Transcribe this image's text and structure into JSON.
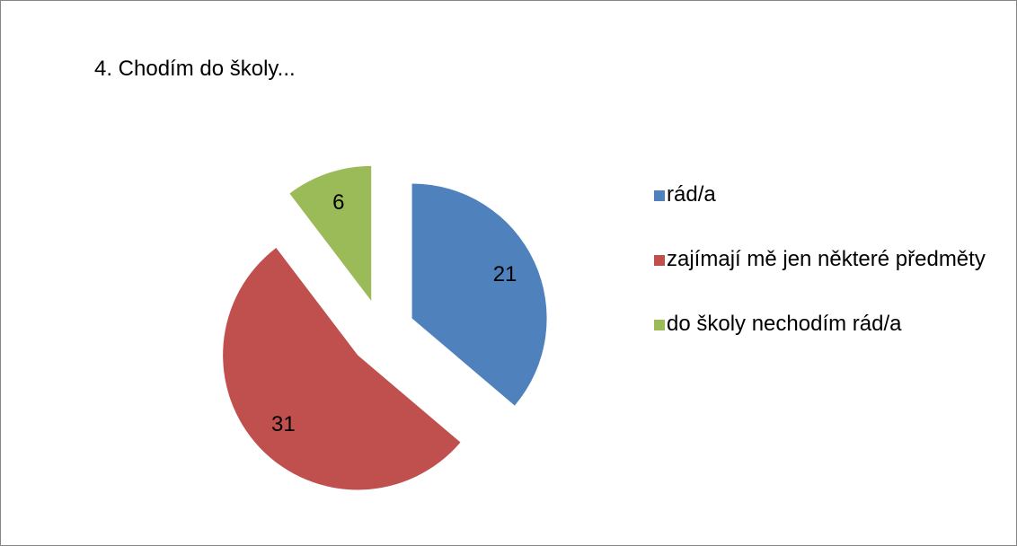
{
  "chart_data": {
    "type": "pie",
    "title": "4. Chodím do školy...",
    "categories": [
      "rád/a",
      "zajímají mě jen některé předměty",
      "do školy nechodím rád/a"
    ],
    "values": [
      21,
      31,
      6
    ],
    "colors": [
      "#4f81bd",
      "#c0504d",
      "#9bbb59"
    ],
    "legend": "right"
  }
}
